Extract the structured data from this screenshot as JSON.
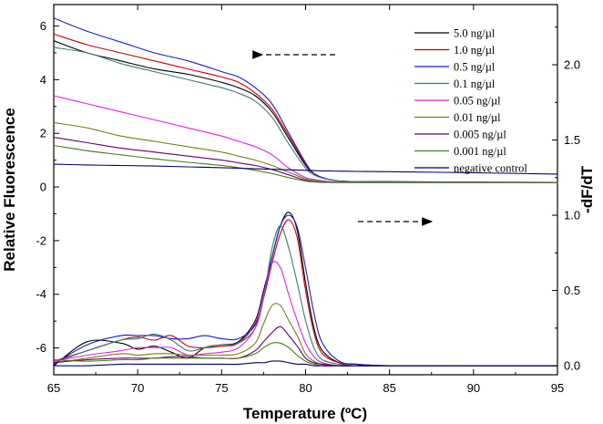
{
  "chart_data": {
    "type": "line",
    "title": "",
    "xlabel": "Temperature (ºC)",
    "ylabel_left": "Relative Fluorescence",
    "ylabel_right": "-dF/dT",
    "xlim": [
      65,
      95
    ],
    "ylim_left": [
      -7,
      6.8
    ],
    "ylim_right": [
      -0.06,
      2.4
    ],
    "x_ticks": [
      "65",
      "70",
      "75",
      "80",
      "85",
      "90",
      "95"
    ],
    "y_left_ticks": [
      "6",
      "4",
      "2",
      "0",
      "-2",
      "-4",
      "-6"
    ],
    "y_right_ticks": [
      "2.0",
      "1.5",
      "1.0",
      "0.5",
      "0.0"
    ],
    "legend_position": "top-right",
    "annotations": [
      "left arrow (upper curves → left axis)",
      "right arrow (lower curves → right axis)"
    ],
    "melt_x": [
      65,
      67,
      69,
      71,
      73,
      75,
      76,
      77,
      78,
      79,
      80,
      80.5,
      81,
      81.5,
      82,
      83,
      85,
      90,
      95
    ],
    "deriv_x": [
      65,
      67,
      69,
      70,
      71,
      72,
      73,
      74,
      75,
      76,
      77,
      77.5,
      78,
      78.5,
      79,
      79.5,
      80,
      80.5,
      81,
      82,
      83,
      85,
      90,
      95
    ],
    "series": [
      {
        "name": "5.0  ng/µl",
        "color": "#000000",
        "melt": [
          5.45,
          5.0,
          4.7,
          4.4,
          4.2,
          3.9,
          3.7,
          3.4,
          2.8,
          1.8,
          0.8,
          0.5,
          0.35,
          0.27,
          0.22,
          0.2,
          0.2,
          0.18,
          0.17
        ],
        "deriv": [
          0.0,
          0.16,
          0.15,
          0.11,
          0.13,
          0.09,
          0.05,
          0.12,
          0.14,
          0.16,
          0.3,
          0.5,
          0.72,
          0.93,
          1.02,
          0.9,
          0.55,
          0.25,
          0.1,
          0.02,
          0.01,
          0.0,
          0.0,
          0.0
        ]
      },
      {
        "name": "1.0  ng/µl",
        "color": "#cc0000",
        "melt": [
          5.7,
          5.3,
          5.0,
          4.7,
          4.4,
          4.1,
          3.9,
          3.5,
          2.9,
          1.9,
          0.85,
          0.5,
          0.35,
          0.27,
          0.22,
          0.2,
          0.19,
          0.18,
          0.17
        ],
        "deriv": [
          0.03,
          0.1,
          0.17,
          0.19,
          0.17,
          0.2,
          0.13,
          0.12,
          0.13,
          0.15,
          0.28,
          0.45,
          0.68,
          0.88,
          0.97,
          0.85,
          0.5,
          0.22,
          0.08,
          0.02,
          0.01,
          0.0,
          0.0,
          0.0
        ]
      },
      {
        "name": "0.5  ng/µl",
        "color": "#1a1acc",
        "melt": [
          6.3,
          5.8,
          5.4,
          5.0,
          4.7,
          4.3,
          4.1,
          3.7,
          3.1,
          2.0,
          0.9,
          0.5,
          0.35,
          0.27,
          0.22,
          0.2,
          0.19,
          0.18,
          0.17
        ],
        "deriv": [
          0.01,
          0.14,
          0.2,
          0.2,
          0.2,
          0.18,
          0.18,
          0.2,
          0.18,
          0.18,
          0.27,
          0.45,
          0.72,
          0.93,
          1.0,
          0.92,
          0.65,
          0.35,
          0.15,
          0.03,
          0.01,
          0.0,
          0.0,
          0.0
        ]
      },
      {
        "name": "0.1  ng/µl",
        "color": "#3a7a7a",
        "melt": [
          5.2,
          5.0,
          4.6,
          4.3,
          4.0,
          3.7,
          3.5,
          3.2,
          2.6,
          1.6,
          0.7,
          0.45,
          0.33,
          0.27,
          0.22,
          0.2,
          0.19,
          0.18,
          0.17
        ],
        "deriv": [
          0.02,
          0.1,
          0.17,
          0.18,
          0.21,
          0.17,
          0.1,
          0.12,
          0.14,
          0.15,
          0.25,
          0.45,
          0.78,
          0.93,
          0.78,
          0.55,
          0.3,
          0.12,
          0.04,
          0.01,
          0.0,
          0.0,
          0.0,
          0.0
        ]
      },
      {
        "name": "0.05  ng/µl",
        "color": "#e022e0",
        "melt": [
          3.4,
          3.1,
          2.8,
          2.5,
          2.2,
          1.9,
          1.7,
          1.5,
          1.2,
          0.7,
          0.35,
          0.28,
          0.23,
          0.2,
          0.18,
          0.17,
          0.17,
          0.17,
          0.17
        ],
        "deriv": [
          0.03,
          0.07,
          0.1,
          0.12,
          0.12,
          0.12,
          0.07,
          0.08,
          0.09,
          0.12,
          0.25,
          0.47,
          0.68,
          0.65,
          0.47,
          0.3,
          0.15,
          0.06,
          0.02,
          0.0,
          0.0,
          0.0,
          0.0,
          0.0
        ]
      },
      {
        "name": "0.01  ng/µl",
        "color": "#7a7a1a",
        "melt": [
          2.4,
          2.2,
          1.9,
          1.7,
          1.5,
          1.3,
          1.15,
          1.0,
          0.8,
          0.55,
          0.3,
          0.24,
          0.2,
          0.18,
          0.17,
          0.17,
          0.17,
          0.17,
          0.17
        ],
        "deriv": [
          0.02,
          0.05,
          0.08,
          0.07,
          0.08,
          0.08,
          0.07,
          0.07,
          0.07,
          0.08,
          0.15,
          0.28,
          0.4,
          0.4,
          0.3,
          0.2,
          0.08,
          0.03,
          0.01,
          0.0,
          0.0,
          0.0,
          0.0,
          0.0
        ]
      },
      {
        "name": "0.005  ng/µl",
        "color": "#660066",
        "melt": [
          1.85,
          1.65,
          1.45,
          1.3,
          1.15,
          1.0,
          0.9,
          0.8,
          0.65,
          0.45,
          0.25,
          0.2,
          0.18,
          0.17,
          0.17,
          0.17,
          0.17,
          0.17,
          0.17
        ],
        "deriv": [
          0.02,
          0.04,
          0.05,
          0.05,
          0.05,
          0.06,
          0.06,
          0.05,
          0.05,
          0.05,
          0.1,
          0.16,
          0.22,
          0.26,
          0.2,
          0.13,
          0.05,
          0.02,
          0.01,
          0.0,
          0.0,
          0.0,
          0.0,
          0.0
        ]
      },
      {
        "name": "0.001  ng/µl",
        "color": "#4a7a1a",
        "melt": [
          1.55,
          1.35,
          1.2,
          1.05,
          0.92,
          0.8,
          0.72,
          0.62,
          0.5,
          0.35,
          0.22,
          0.19,
          0.17,
          0.17,
          0.17,
          0.17,
          0.17,
          0.17,
          0.17
        ],
        "deriv": [
          0.04,
          0.03,
          0.04,
          0.04,
          0.05,
          0.05,
          0.05,
          0.05,
          0.05,
          0.05,
          0.08,
          0.12,
          0.15,
          0.15,
          0.12,
          0.07,
          0.03,
          0.01,
          0.0,
          0.0,
          0.0,
          0.0,
          0.0,
          0.0
        ]
      },
      {
        "name": "negative control",
        "color": "#00006e",
        "melt": [
          0.85,
          0.82,
          0.8,
          0.78,
          0.75,
          0.72,
          0.7,
          0.68,
          0.66,
          0.64,
          0.62,
          0.61,
          0.6,
          0.6,
          0.59,
          0.58,
          0.57,
          0.53,
          0.48
        ],
        "deriv": [
          0.0,
          0.0,
          0.01,
          0.01,
          0.01,
          0.01,
          0.01,
          0.01,
          0.01,
          0.01,
          0.02,
          0.02,
          0.03,
          0.03,
          0.02,
          0.01,
          0.01,
          0.0,
          0.0,
          0.0,
          0.0,
          0.0,
          0.0,
          0.0
        ]
      }
    ]
  }
}
